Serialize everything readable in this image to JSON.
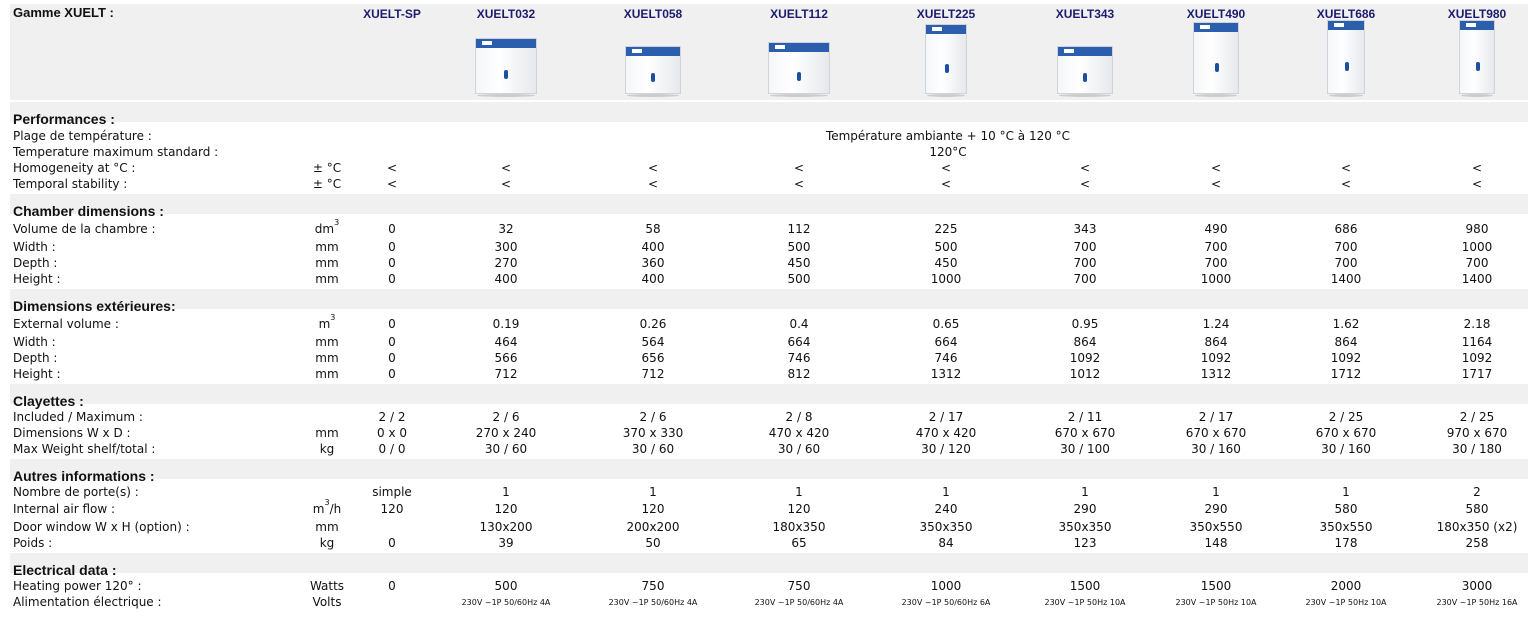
{
  "title": "Gamme XUELT :",
  "columns": [
    "XUELT-SP",
    "XUELT032",
    "XUELT058",
    "XUELT112",
    "XUELT225",
    "XUELT343",
    "XUELT490",
    "XUELT686",
    "XUELT980"
  ],
  "sections": {
    "performances": {
      "title": "Performances :",
      "rows": {
        "plage": {
          "label": "Plage de température :",
          "unit": "",
          "span": "Température ambiante + 10 °C à 120 °C"
        },
        "tmax": {
          "label": "Temperature maximum standard :",
          "unit": "",
          "span": "120°C"
        },
        "homog": {
          "label": "Homogeneity at °C :",
          "unit": "± °C",
          "values": [
            "<",
            "<",
            "<",
            "<",
            "<",
            "<",
            "<",
            "<",
            "<"
          ]
        },
        "stab": {
          "label": "Temporal stability :",
          "unit": "± °C",
          "values": [
            "<",
            "<",
            "<",
            "<",
            "<",
            "<",
            "<",
            "<",
            "<"
          ]
        }
      }
    },
    "chamber": {
      "title": "Chamber dimensions :",
      "rows": {
        "volume": {
          "label": "Volume de la chambre :",
          "unit": "dm",
          "unit_sup": "3",
          "values": [
            "0",
            "32",
            "58",
            "112",
            "225",
            "343",
            "490",
            "686",
            "980"
          ]
        },
        "width": {
          "label": "Width :",
          "unit": "mm",
          "values": [
            "0",
            "300",
            "400",
            "500",
            "500",
            "700",
            "700",
            "700",
            "1000"
          ]
        },
        "depth": {
          "label": "Depth :",
          "unit": "mm",
          "values": [
            "0",
            "270",
            "360",
            "450",
            "450",
            "700",
            "700",
            "700",
            "700"
          ]
        },
        "height": {
          "label": "Height :",
          "unit": "mm",
          "values": [
            "0",
            "400",
            "400",
            "500",
            "1000",
            "700",
            "1000",
            "1400",
            "1400"
          ]
        }
      }
    },
    "exterior": {
      "title": "Dimensions extérieures:",
      "rows": {
        "volume": {
          "label": "External volume :",
          "unit": "m",
          "unit_sup": "3",
          "values": [
            "0",
            "0.19",
            "0.26",
            "0.4",
            "0.65",
            "0.95",
            "1.24",
            "1.62",
            "2.18"
          ]
        },
        "width": {
          "label": "Width :",
          "unit": "mm",
          "values": [
            "0",
            "464",
            "564",
            "664",
            "664",
            "864",
            "864",
            "864",
            "1164"
          ]
        },
        "depth": {
          "label": "Depth :",
          "unit": "mm",
          "values": [
            "0",
            "566",
            "656",
            "746",
            "746",
            "1092",
            "1092",
            "1092",
            "1092"
          ]
        },
        "height": {
          "label": "Height :",
          "unit": "mm",
          "values": [
            "0",
            "712",
            "712",
            "812",
            "1312",
            "1012",
            "1312",
            "1712",
            "1717"
          ]
        }
      }
    },
    "clayettes": {
      "title": "Clayettes :",
      "rows": {
        "included": {
          "label": "Included / Maximum :",
          "unit": "",
          "values": [
            "2 / 2",
            "2 / 6",
            "2 / 6",
            "2 / 8",
            "2 / 17",
            "2 / 11",
            "2 / 17",
            "2 / 25",
            "2 / 25"
          ]
        },
        "dims": {
          "label": "Dimensions W x D :",
          "unit": "mm",
          "values": [
            "0 x 0",
            "270 x 240",
            "370 x 330",
            "470 x 420",
            "470 x 420",
            "670 x 670",
            "670 x 670",
            "670 x 670",
            "970 x 670"
          ]
        },
        "weight": {
          "label": "Max Weight shelf/total :",
          "unit": "kg",
          "values": [
            "0 / 0",
            "30 / 60",
            "30 / 60",
            "30 / 60",
            "30 / 120",
            "30 / 100",
            "30 / 160",
            "30 / 160",
            "30 / 180"
          ]
        }
      }
    },
    "autres": {
      "title": "Autres informations :",
      "rows": {
        "portes": {
          "label": "Nombre de porte(s) :",
          "unit": "",
          "values": [
            "simple",
            "1",
            "1",
            "1",
            "1",
            "1",
            "1",
            "1",
            "2"
          ]
        },
        "airflow": {
          "label": "Internal air flow :",
          "unit": "m",
          "unit_sup": "3",
          "unit_post": "/h",
          "values": [
            "120",
            "120",
            "120",
            "120",
            "240",
            "290",
            "290",
            "580",
            "580"
          ]
        },
        "window": {
          "label": "Door window W x H (option) :",
          "unit": "mm",
          "values": [
            "",
            "130x200",
            "200x200",
            "180x350",
            "350x350",
            "350x350",
            "350x550",
            "350x550",
            "180x350 (x2)"
          ]
        },
        "poids": {
          "label": "Poids :",
          "unit": "kg",
          "values": [
            "0",
            "39",
            "50",
            "65",
            "84",
            "123",
            "148",
            "178",
            "258"
          ]
        }
      }
    },
    "electrical": {
      "title": "Electrical data :",
      "rows": {
        "power": {
          "label": "Heating power 120° :",
          "unit": "Watts",
          "values": [
            "0",
            "500",
            "750",
            "750",
            "1000",
            "1500",
            "1500",
            "2000",
            "3000"
          ]
        },
        "alim": {
          "label": "Alimentation électrique :",
          "unit": "Volts",
          "values": [
            "",
            "230V ~1P 50/60Hz 4A",
            "230V ~1P 50/60Hz 4A",
            "230V ~1P 50/60Hz 4A",
            "230V ~1P 50/60Hz 6A",
            "230V ~1P 50Hz 10A",
            "230V ~1P 50Hz 10A",
            "230V ~1P 50Hz 10A",
            "230V ~1P 50Hz 16A"
          ]
        }
      }
    }
  },
  "colors": {
    "header_text": "#1c1c6e",
    "band": "#f0f0f0",
    "oven_panel": "#2b5fae"
  },
  "icons": [
    "oven-product-image"
  ]
}
